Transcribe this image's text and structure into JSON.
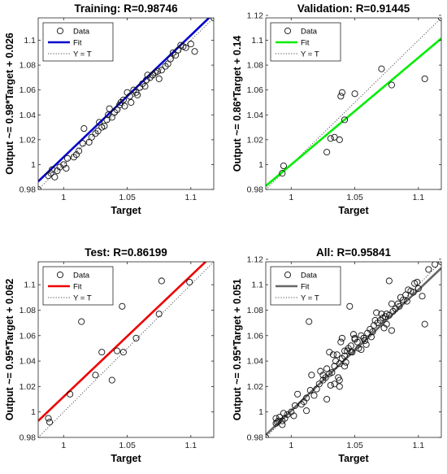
{
  "chart_data": [
    {
      "type": "scatter",
      "title": "Training: R=0.98746",
      "xlabel": "Target",
      "ylabel": "Output ~= 0.98*Target + 0.026",
      "xlim": [
        0.98,
        1.118
      ],
      "ylim": [
        0.98,
        1.118
      ],
      "xticks": [
        1,
        1.05,
        1.1
      ],
      "xtick_labels": [
        "1",
        "1.05",
        "1.1"
      ],
      "yticks": [
        0.98,
        1,
        1.02,
        1.04,
        1.06,
        1.08,
        1.1
      ],
      "ytick_labels": [
        "0.98",
        "1",
        "1.02",
        "1.04",
        "1.06",
        "1.08",
        "1.1"
      ],
      "fit": {
        "slope": 0.98,
        "intercept": 0.026,
        "color": "#0000cc"
      },
      "legend": {
        "position": "top-left",
        "entries": [
          "Data",
          "Fit",
          "Y = T"
        ]
      },
      "grid": false,
      "series": [
        {
          "name": "Data",
          "points": [
            [
              0.98,
              0.98
            ],
            [
              0.988,
              0.991
            ],
            [
              0.99,
              0.993
            ],
            [
              0.991,
              0.996
            ],
            [
              0.993,
              0.99
            ],
            [
              0.995,
              0.995
            ],
            [
              0.997,
              0.998
            ],
            [
              1.0,
              1.0
            ],
            [
              1.002,
              0.997
            ],
            [
              1.003,
              1.005
            ],
            [
              1.008,
              1.006
            ],
            [
              1.01,
              1.008
            ],
            [
              1.012,
              1.011
            ],
            [
              1.015,
              1.017
            ],
            [
              1.016,
              1.029
            ],
            [
              1.02,
              1.018
            ],
            [
              1.022,
              1.022
            ],
            [
              1.025,
              1.025
            ],
            [
              1.027,
              1.027
            ],
            [
              1.028,
              1.034
            ],
            [
              1.03,
              1.03
            ],
            [
              1.032,
              1.031
            ],
            [
              1.034,
              1.036
            ],
            [
              1.035,
              1.04
            ],
            [
              1.036,
              1.045
            ],
            [
              1.038,
              1.038
            ],
            [
              1.04,
              1.042
            ],
            [
              1.042,
              1.044
            ],
            [
              1.044,
              1.048
            ],
            [
              1.045,
              1.05
            ],
            [
              1.047,
              1.052
            ],
            [
              1.048,
              1.047
            ],
            [
              1.05,
              1.058
            ],
            [
              1.052,
              1.055
            ],
            [
              1.053,
              1.05
            ],
            [
              1.055,
              1.06
            ],
            [
              1.057,
              1.058
            ],
            [
              1.058,
              1.056
            ],
            [
              1.06,
              1.062
            ],
            [
              1.062,
              1.065
            ],
            [
              1.064,
              1.063
            ],
            [
              1.065,
              1.068
            ],
            [
              1.066,
              1.072
            ],
            [
              1.068,
              1.07
            ],
            [
              1.07,
              1.072
            ],
            [
              1.072,
              1.074
            ],
            [
              1.074,
              1.075
            ],
            [
              1.075,
              1.069
            ],
            [
              1.077,
              1.076
            ],
            [
              1.08,
              1.079
            ],
            [
              1.082,
              1.081
            ],
            [
              1.084,
              1.085
            ],
            [
              1.086,
              1.09
            ],
            [
              1.088,
              1.088
            ],
            [
              1.09,
              1.092
            ],
            [
              1.092,
              1.096
            ],
            [
              1.094,
              1.095
            ],
            [
              1.096,
              1.094
            ],
            [
              1.1,
              1.097
            ],
            [
              1.103,
              1.091
            ],
            [
              1.118,
              1.118
            ]
          ]
        }
      ]
    },
    {
      "type": "scatter",
      "title": "Validation: R=0.91445",
      "xlabel": "Target",
      "ylabel": "Output ~= 0.86*Target + 0.14",
      "xlim": [
        0.98,
        1.118
      ],
      "ylim": [
        0.98,
        1.118
      ],
      "xticks": [
        1,
        1.05,
        1.1
      ],
      "xtick_labels": [
        "1",
        "1.05",
        "1.1"
      ],
      "yticks": [
        0.98,
        1,
        1.02,
        1.04,
        1.06,
        1.08,
        1.1,
        1.12
      ],
      "ytick_labels": [
        "0.98",
        "1",
        "1.02",
        "1.04",
        "1.06",
        "1.08",
        "1.1",
        "1.12"
      ],
      "fit": {
        "slope": 0.86,
        "intercept": 0.14,
        "color": "#00ee00"
      },
      "legend": {
        "position": "top-left",
        "entries": [
          "Data",
          "Fit",
          "Y = T"
        ]
      },
      "grid": false,
      "series": [
        {
          "name": "Data",
          "points": [
            [
              0.993,
              0.993
            ],
            [
              0.994,
              0.999
            ],
            [
              1.028,
              1.01
            ],
            [
              1.031,
              1.021
            ],
            [
              1.034,
              1.022
            ],
            [
              1.038,
              1.02
            ],
            [
              1.039,
              1.055
            ],
            [
              1.04,
              1.058
            ],
            [
              1.042,
              1.036
            ],
            [
              1.05,
              1.057
            ],
            [
              1.071,
              1.077
            ],
            [
              1.079,
              1.064
            ],
            [
              1.105,
              1.069
            ],
            [
              1.118,
              1.118
            ]
          ]
        }
      ]
    },
    {
      "type": "scatter",
      "title": "Test: R=0.86199",
      "xlabel": "Target",
      "ylabel": "Output ~= 0.95*Target + 0.062",
      "xlim": [
        0.98,
        1.118
      ],
      "ylim": [
        0.98,
        1.118
      ],
      "xticks": [
        1,
        1.05,
        1.1
      ],
      "xtick_labels": [
        "1",
        "1.05",
        "1.1"
      ],
      "yticks": [
        0.98,
        1,
        1.02,
        1.04,
        1.06,
        1.08,
        1.1
      ],
      "ytick_labels": [
        "0.98",
        "1",
        "1.02",
        "1.04",
        "1.06",
        "1.08",
        "1.1"
      ],
      "fit": {
        "slope": 0.95,
        "intercept": 0.062,
        "color": "#ee0000"
      },
      "legend": {
        "position": "top-left",
        "entries": [
          "Data",
          "Fit",
          "Y = T"
        ]
      },
      "grid": false,
      "series": [
        {
          "name": "Data",
          "points": [
            [
              0.988,
              0.995
            ],
            [
              0.989,
              0.992
            ],
            [
              1.005,
              1.014
            ],
            [
              1.014,
              1.071
            ],
            [
              1.025,
              1.029
            ],
            [
              1.03,
              1.047
            ],
            [
              1.038,
              1.025
            ],
            [
              1.042,
              1.048
            ],
            [
              1.046,
              1.083
            ],
            [
              1.047,
              1.047
            ],
            [
              1.057,
              1.058
            ],
            [
              1.075,
              1.077
            ],
            [
              1.077,
              1.103
            ],
            [
              1.099,
              1.102
            ]
          ]
        }
      ]
    },
    {
      "type": "scatter",
      "title": "All: R=0.95841",
      "xlabel": "Target",
      "ylabel": "Output ~= 0.95*Target + 0.051",
      "xlim": [
        0.98,
        1.118
      ],
      "ylim": [
        0.98,
        1.118
      ],
      "xticks": [
        1,
        1.05,
        1.1
      ],
      "xtick_labels": [
        "1",
        "1.05",
        "1.1"
      ],
      "yticks": [
        0.98,
        1,
        1.02,
        1.04,
        1.06,
        1.08,
        1.1,
        1.12
      ],
      "ytick_labels": [
        "0.98",
        "1",
        "1.02",
        "1.04",
        "1.06",
        "1.08",
        "1.1",
        "1.12"
      ],
      "fit": {
        "slope": 0.95,
        "intercept": 0.051,
        "color": "#666666"
      },
      "legend": {
        "position": "top-left",
        "entries": [
          "Data",
          "Fit",
          "Y = T"
        ]
      },
      "grid": false,
      "series": [
        {
          "name": "Data",
          "points": [
            [
              0.98,
              0.98
            ],
            [
              0.988,
              0.991
            ],
            [
              0.99,
              0.993
            ],
            [
              0.991,
              0.996
            ],
            [
              0.993,
              0.99
            ],
            [
              0.995,
              0.995
            ],
            [
              0.997,
              0.998
            ],
            [
              1.0,
              1.0
            ],
            [
              1.002,
              0.997
            ],
            [
              1.003,
              1.005
            ],
            [
              1.008,
              1.006
            ],
            [
              1.01,
              1.008
            ],
            [
              1.012,
              1.011
            ],
            [
              1.015,
              1.017
            ],
            [
              1.016,
              1.029
            ],
            [
              1.02,
              1.018
            ],
            [
              1.022,
              1.022
            ],
            [
              1.025,
              1.025
            ],
            [
              1.027,
              1.027
            ],
            [
              1.028,
              1.034
            ],
            [
              1.03,
              1.03
            ],
            [
              1.032,
              1.031
            ],
            [
              1.034,
              1.036
            ],
            [
              1.035,
              1.04
            ],
            [
              1.036,
              1.045
            ],
            [
              1.038,
              1.038
            ],
            [
              1.04,
              1.042
            ],
            [
              1.042,
              1.044
            ],
            [
              1.044,
              1.048
            ],
            [
              1.045,
              1.05
            ],
            [
              1.047,
              1.052
            ],
            [
              1.048,
              1.047
            ],
            [
              1.05,
              1.058
            ],
            [
              1.052,
              1.055
            ],
            [
              1.053,
              1.05
            ],
            [
              1.055,
              1.06
            ],
            [
              1.057,
              1.058
            ],
            [
              1.058,
              1.056
            ],
            [
              1.06,
              1.062
            ],
            [
              1.062,
              1.065
            ],
            [
              1.064,
              1.063
            ],
            [
              1.065,
              1.068
            ],
            [
              1.066,
              1.072
            ],
            [
              1.068,
              1.07
            ],
            [
              1.07,
              1.072
            ],
            [
              1.072,
              1.074
            ],
            [
              1.074,
              1.075
            ],
            [
              1.075,
              1.069
            ],
            [
              1.077,
              1.076
            ],
            [
              1.08,
              1.079
            ],
            [
              1.082,
              1.081
            ],
            [
              1.084,
              1.085
            ],
            [
              1.086,
              1.09
            ],
            [
              1.088,
              1.088
            ],
            [
              1.09,
              1.092
            ],
            [
              1.092,
              1.096
            ],
            [
              1.094,
              1.095
            ],
            [
              1.096,
              1.094
            ],
            [
              1.1,
              1.097
            ],
            [
              1.103,
              1.091
            ],
            [
              1.118,
              1.118
            ],
            [
              0.993,
              0.993
            ],
            [
              0.994,
              0.999
            ],
            [
              1.028,
              1.01
            ],
            [
              1.031,
              1.021
            ],
            [
              1.034,
              1.022
            ],
            [
              1.038,
              1.02
            ],
            [
              1.039,
              1.055
            ],
            [
              1.04,
              1.058
            ],
            [
              1.042,
              1.036
            ],
            [
              1.05,
              1.057
            ],
            [
              1.071,
              1.077
            ],
            [
              1.079,
              1.064
            ],
            [
              1.105,
              1.069
            ],
            [
              0.988,
              0.995
            ],
            [
              0.989,
              0.992
            ],
            [
              1.005,
              1.014
            ],
            [
              1.014,
              1.071
            ],
            [
              1.025,
              1.029
            ],
            [
              1.03,
              1.047
            ],
            [
              1.038,
              1.025
            ],
            [
              1.042,
              1.048
            ],
            [
              1.046,
              1.083
            ],
            [
              1.047,
              1.047
            ],
            [
              1.057,
              1.058
            ],
            [
              1.075,
              1.077
            ],
            [
              1.077,
              1.103
            ],
            [
              1.099,
              1.102
            ],
            [
              1.012,
              1.001
            ],
            [
              1.018,
              1.013
            ],
            [
              1.023,
              1.032
            ],
            [
              1.033,
              1.045
            ],
            [
              1.037,
              1.027
            ],
            [
              1.043,
              1.039
            ],
            [
              1.049,
              1.061
            ],
            [
              1.055,
              1.049
            ],
            [
              1.059,
              1.053
            ],
            [
              1.063,
              1.059
            ],
            [
              1.067,
              1.078
            ],
            [
              1.073,
              1.066
            ],
            [
              1.079,
              1.085
            ],
            [
              1.085,
              1.083
            ],
            [
              1.091,
              1.087
            ],
            [
              1.097,
              1.101
            ],
            [
              1.108,
              1.112
            ],
            [
              1.113,
              1.116
            ]
          ]
        }
      ]
    }
  ]
}
